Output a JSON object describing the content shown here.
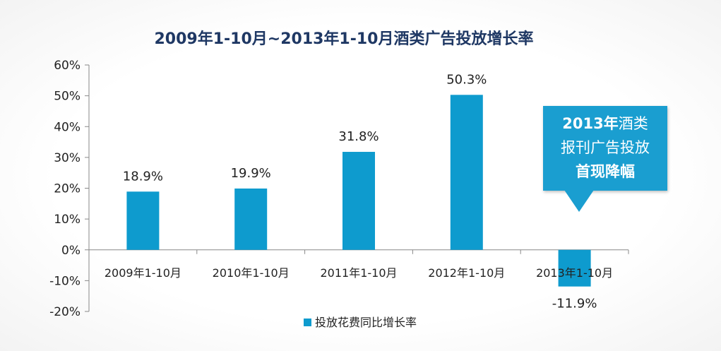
{
  "chart_data": {
    "type": "bar",
    "title": "2009年1-10月~2013年1-10月酒类广告投放增长率",
    "categories": [
      "2009年1-10月",
      "2010年1-10月",
      "2011年1-10月",
      "2012年1-10月",
      "2013年1-10月"
    ],
    "series": [
      {
        "name": "投放花费同比增长率",
        "values": [
          18.9,
          19.9,
          31.8,
          50.3,
          -11.9
        ],
        "data_labels": [
          "18.9%",
          "19.9%",
          "31.8%",
          "50.3%",
          "-11.9%"
        ]
      }
    ],
    "ylim": [
      -20,
      60
    ],
    "yticks": [
      -20,
      -10,
      0,
      10,
      20,
      30,
      40,
      50,
      60
    ],
    "ytick_labels": [
      "-20%",
      "-10%",
      "0%",
      "10%",
      "20%",
      "30%",
      "40%",
      "50%",
      "60%"
    ],
    "xlabel": "",
    "ylabel": "",
    "grid": false,
    "legend_position": "bottom",
    "colors": {
      "bar": "#0e9bce",
      "title": "#1f3864",
      "axis": "#888888",
      "text": "#222222"
    }
  },
  "callout": {
    "line1_bold": "2013年",
    "line1_rest": "酒类",
    "line2": "报刊广告投放",
    "line3": "首现降幅",
    "color": "#1a9ed0"
  }
}
